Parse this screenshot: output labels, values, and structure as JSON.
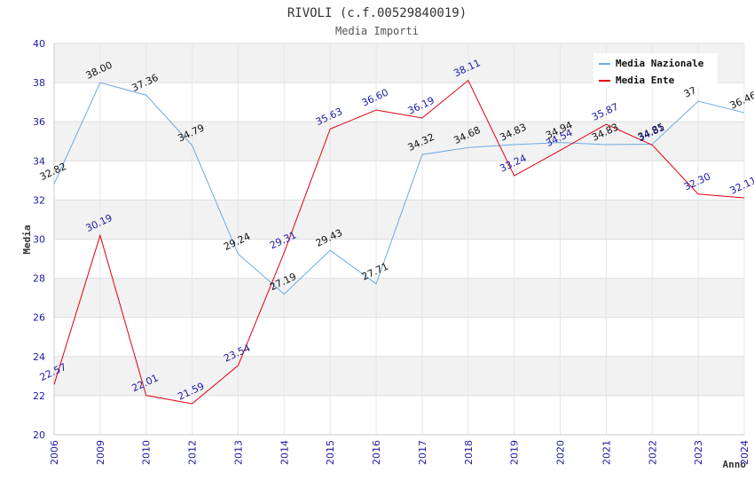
{
  "chart_data": {
    "type": "line",
    "title": "RIVOLI (c.f.00529840019)",
    "subtitle": "Media Importi",
    "xlabel": "Anno",
    "ylabel": "Media",
    "ylim": [
      20,
      40
    ],
    "yticks": [
      "20",
      "22",
      "24",
      "26",
      "28",
      "30",
      "32",
      "34",
      "36",
      "38",
      "40"
    ],
    "categories": [
      "2006",
      "2009",
      "2010",
      "2012",
      "2013",
      "2014",
      "2015",
      "2016",
      "2017",
      "2018",
      "2019",
      "2020",
      "2021",
      "2022",
      "2023",
      "2024"
    ],
    "series": [
      {
        "name": "Media Nazionale",
        "color": "#6aaae4",
        "values": [
          32.82,
          38.0,
          37.36,
          34.79,
          29.24,
          27.19,
          29.43,
          27.71,
          34.32,
          34.68,
          34.83,
          34.94,
          34.83,
          34.85,
          37.05,
          36.46
        ],
        "labels": [
          "32.82",
          "38.00",
          "37.36",
          "34.79",
          "29.24",
          "27.19",
          "29.43",
          "27.71",
          "34.32",
          "34.68",
          "34.83",
          "34.94",
          "34.83",
          "34.85",
          "37",
          "36.46"
        ]
      },
      {
        "name": "Media Ente",
        "color": "#e0000f",
        "values": [
          22.57,
          30.19,
          22.01,
          21.59,
          23.54,
          29.31,
          35.63,
          36.6,
          36.19,
          38.11,
          33.24,
          34.54,
          35.87,
          34.81,
          32.3,
          32.11
        ],
        "labels": [
          "22.57",
          "30.19",
          "22.01",
          "21.59",
          "23.54",
          "29.31",
          "35.63",
          "36.60",
          "36.19",
          "38.11",
          "33.24",
          "34.54",
          "35.87",
          "34.81",
          "32.30",
          "32.11"
        ]
      }
    ],
    "legend_position": "top-right",
    "grid": true
  }
}
